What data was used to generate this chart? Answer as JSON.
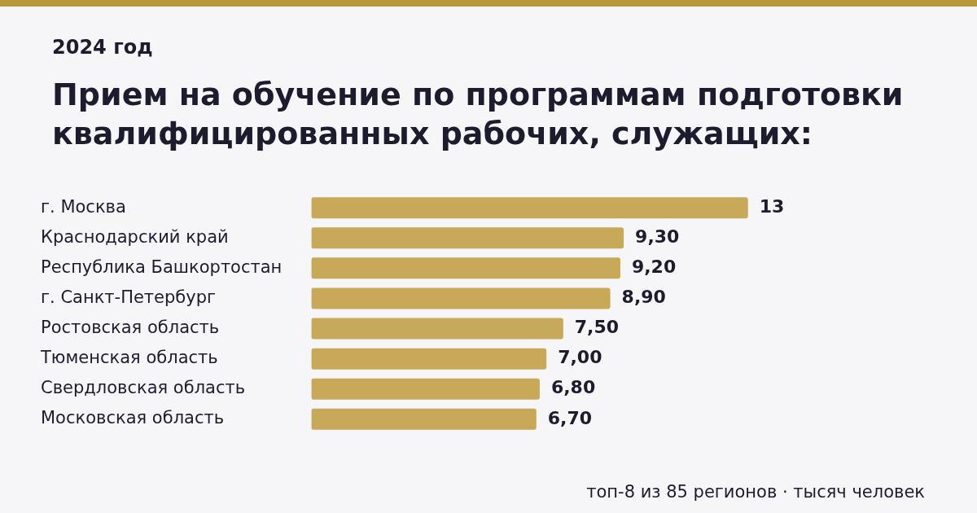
{
  "chart_data": {
    "type": "bar",
    "orientation": "horizontal",
    "subtitle": "2024 год",
    "title": "Прием на обучение по программам подготовки квалифицированных рабочих, служащих:",
    "categories": [
      "г. Москва",
      "Краснодарский край",
      "Республика Башкортостан",
      "г. Санкт-Петербург",
      "Ростовская область",
      "Тюменская область",
      "Свердловская область",
      "Московская область"
    ],
    "values": [
      13,
      9.3,
      9.2,
      8.9,
      7.5,
      7.0,
      6.8,
      6.7
    ],
    "value_labels": [
      "13",
      "9,30",
      "9,20",
      "8,90",
      "7,50",
      "7,00",
      "6,80",
      "6,70"
    ],
    "color": "#c8a95a",
    "grid": false,
    "legend": false,
    "tick_labels": "y",
    "annotations": [
      "топ-8 из 85 регионов · тысяч человек"
    ]
  }
}
